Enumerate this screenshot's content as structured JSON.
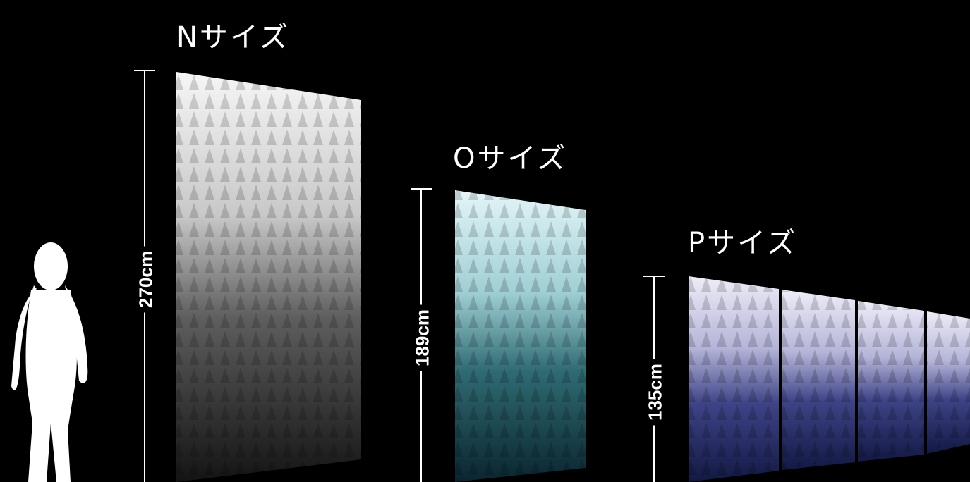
{
  "sizes": [
    {
      "label": "Nサイズ",
      "height": "270cm",
      "tone": "grayscale",
      "colors": {
        "top": "#f4f4f4",
        "mid": "#6c6c6c",
        "bottom": "#161616"
      }
    },
    {
      "label": "Oサイズ",
      "height": "189cm",
      "tone": "teal",
      "colors": {
        "top": "#dff3f6",
        "mid": "#3f7f86",
        "bottom": "#0b2a33"
      }
    },
    {
      "label": "Pサイズ",
      "height": "135cm",
      "tone": "indigo",
      "panels": 4,
      "colors": {
        "top": "#ecebf6",
        "mid": "#4a4c8c",
        "bottom": "#141a45"
      }
    }
  ],
  "figure": {
    "icon": "person-silhouette-icon"
  },
  "colors": {
    "background": "#000000",
    "text": "#ffffff"
  }
}
